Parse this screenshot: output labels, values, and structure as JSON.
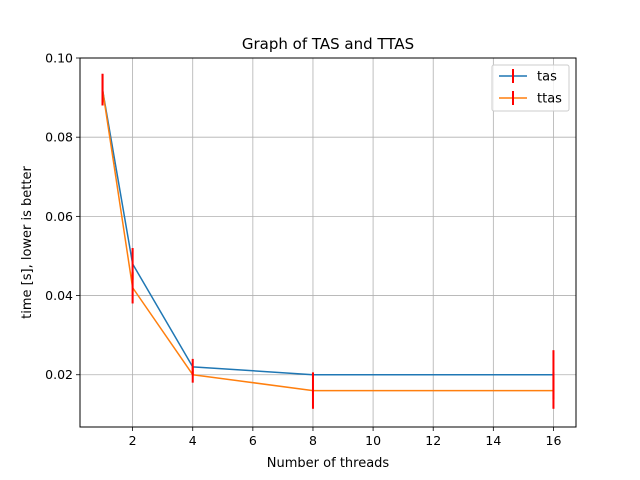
{
  "chart_data": {
    "type": "line",
    "title": "Graph of TAS and TTAS",
    "xlabel": "Number of threads",
    "ylabel": "time [s], lower is better",
    "xlim": [
      0.25,
      16.75
    ],
    "ylim": [
      0.0068,
      0.1
    ],
    "xticks": [
      2,
      4,
      6,
      8,
      10,
      12,
      14,
      16
    ],
    "yticks": [
      0.02,
      0.04,
      0.06,
      0.08,
      0.1
    ],
    "ytick_labels": [
      "0.02",
      "0.04",
      "0.06",
      "0.08",
      "0.10"
    ],
    "grid": true,
    "legend_position": "top-right",
    "errorbar_color": "#ff0000",
    "series": [
      {
        "name": "tas",
        "color": "#1f77b4",
        "x": [
          1,
          2,
          4,
          8,
          16
        ],
        "y": [
          0.092,
          0.048,
          0.022,
          0.02,
          0.02
        ],
        "err": [
          0.004,
          0.004,
          0.002,
          0.0005,
          0.0062
        ]
      },
      {
        "name": "ttas",
        "color": "#ff7f0e",
        "x": [
          1,
          2,
          4,
          8,
          16
        ],
        "y": [
          0.092,
          0.042,
          0.02,
          0.016,
          0.016
        ],
        "err": [
          0.004,
          0.004,
          0.002,
          0.0046,
          0.0046
        ]
      }
    ]
  }
}
